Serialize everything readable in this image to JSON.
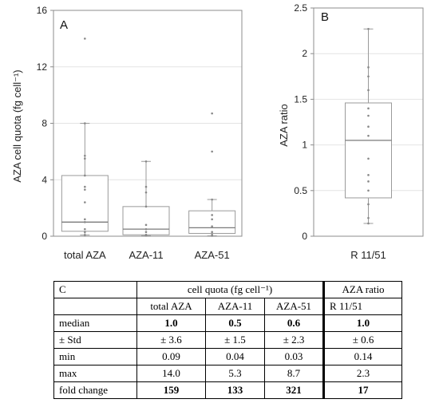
{
  "chart_data": [
    {
      "type": "box",
      "panel_label": "A",
      "ylabel": "AZA cell quota (fg cell⁻¹)",
      "ylim": [
        0,
        16
      ],
      "yticks": [
        0,
        4,
        8,
        12,
        16
      ],
      "grid": true,
      "categories": [
        "total AZA",
        "AZA-11",
        "AZA-51"
      ],
      "boxes": [
        {
          "min": 0.09,
          "q1": 0.35,
          "median": 1.0,
          "q3": 4.3,
          "max": 8.0,
          "points": [
            14.0,
            8.0,
            5.7,
            5.5,
            4.3,
            3.5,
            3.3,
            2.4,
            1.2,
            1.0,
            0.5,
            0.3,
            0.09
          ]
        },
        {
          "min": 0.04,
          "q1": 0.1,
          "median": 0.5,
          "q3": 2.1,
          "max": 5.3,
          "points": [
            5.3,
            3.5,
            3.1,
            2.1,
            0.8,
            0.5,
            0.3,
            0.1,
            0.04
          ]
        },
        {
          "min": 0.03,
          "q1": 0.2,
          "median": 0.6,
          "q3": 1.8,
          "max": 2.6,
          "points": [
            8.7,
            6.0,
            2.6,
            1.5,
            1.2,
            0.7,
            0.3,
            0.1,
            0.03
          ]
        }
      ]
    },
    {
      "type": "box",
      "panel_label": "B",
      "ylabel": "AZA ratio",
      "ylim": [
        0,
        2.5
      ],
      "yticks": [
        0,
        0.5,
        1,
        1.5,
        2,
        2.5
      ],
      "grid": true,
      "categories": [
        "R 11/51"
      ],
      "boxes": [
        {
          "min": 0.14,
          "q1": 0.42,
          "median": 1.05,
          "q3": 1.46,
          "max": 2.27,
          "points": [
            2.27,
            1.85,
            1.75,
            1.6,
            1.4,
            1.32,
            1.2,
            1.1,
            0.85,
            0.67,
            0.6,
            0.5,
            0.35,
            0.2,
            0.14
          ]
        }
      ]
    }
  ],
  "table": {
    "label": "C",
    "group_header": "cell quota (fg cell⁻¹)",
    "ratio_header": "AZA ratio",
    "col_headers": [
      "total AZA",
      "AZA-11",
      "AZA-51",
      "R 11/51"
    ],
    "rows": [
      {
        "label": "median",
        "values": [
          "1.0",
          "0.5",
          "0.6",
          "1.0"
        ],
        "bold": true
      },
      {
        "label": "± Std",
        "values": [
          "± 3.6",
          "± 1.5",
          "± 2.3",
          "± 0.6"
        ],
        "bold": false
      },
      {
        "label": "min",
        "values": [
          "0.09",
          "0.04",
          "0.03",
          "0.14"
        ],
        "bold": false
      },
      {
        "label": "max",
        "values": [
          "14.0",
          "5.3",
          "8.7",
          "2.3"
        ],
        "bold": false
      },
      {
        "label": "fold change",
        "values": [
          "159",
          "133",
          "321",
          "17"
        ],
        "bold": true
      }
    ]
  },
  "colors": {
    "axis": "#8c8c8c",
    "grid": "#e4e4e4",
    "box": "#9a9a9a",
    "median": "#7a7a7a",
    "point": "#888888"
  }
}
